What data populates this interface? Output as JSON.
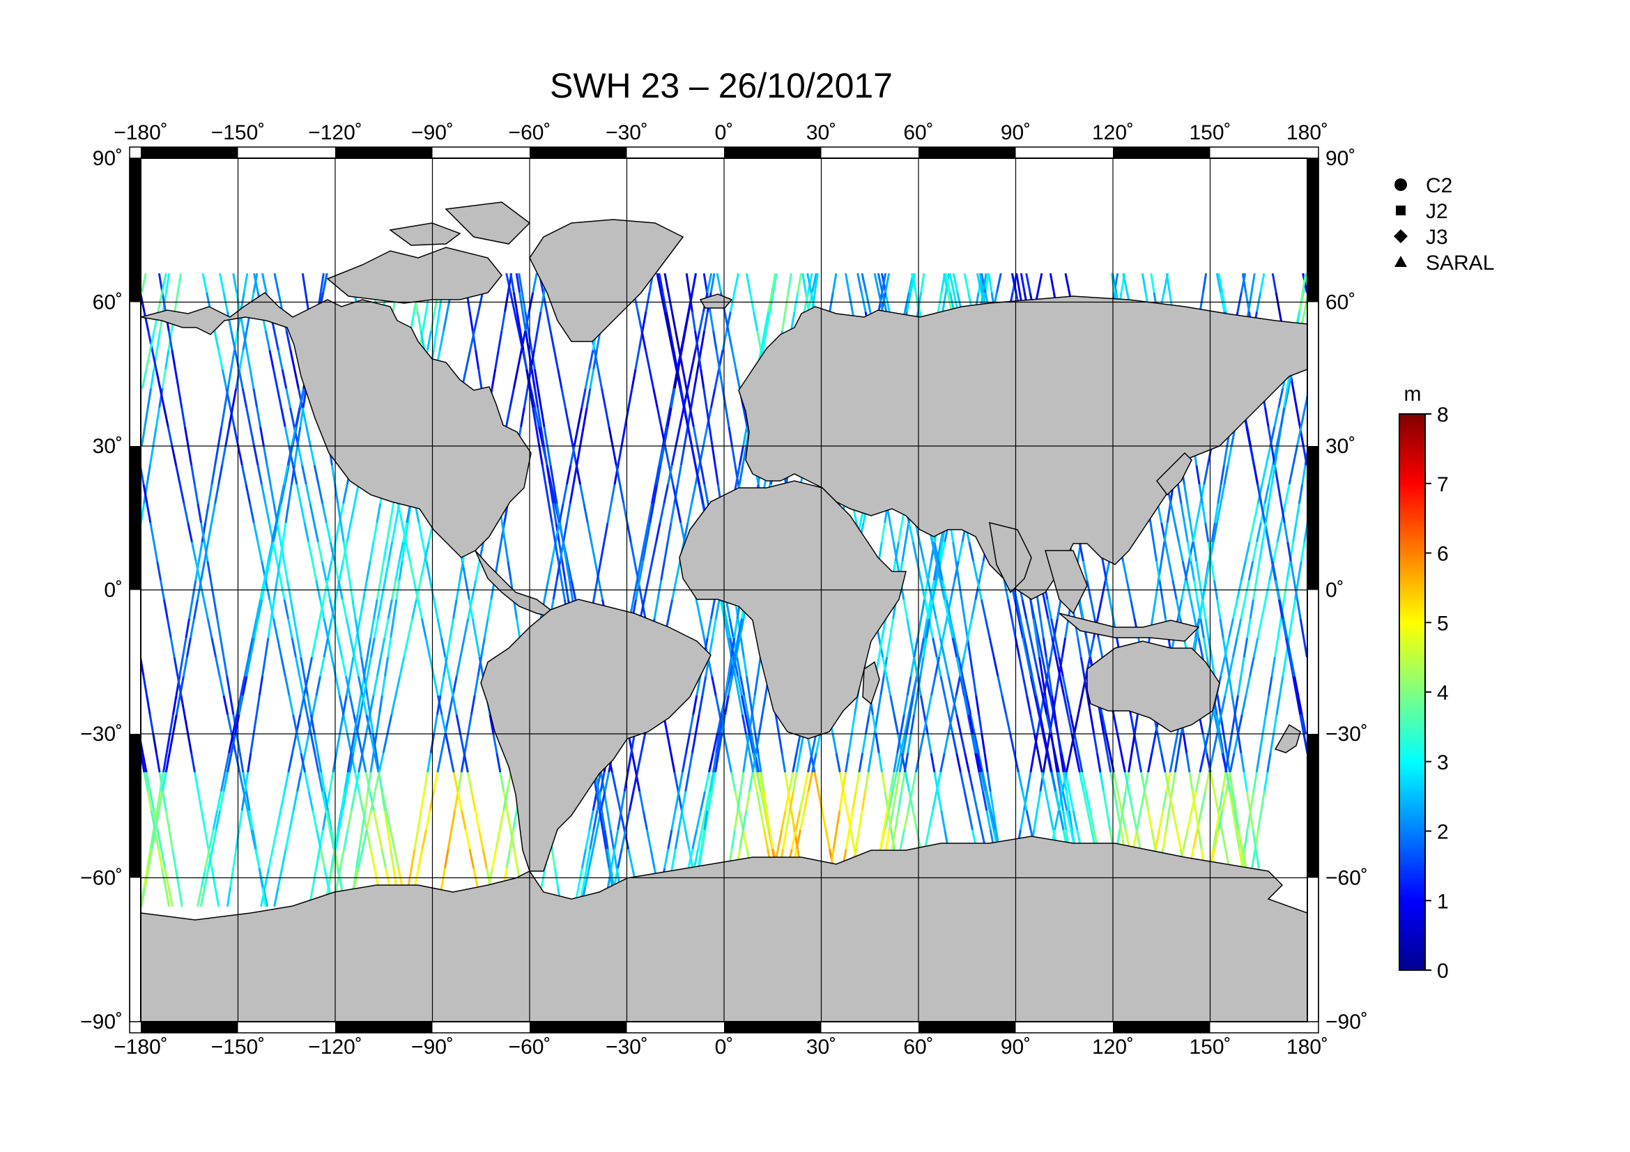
{
  "title": "SWH 23 – 26/10/2017",
  "map": {
    "projection": "equirectangular",
    "lon_range": [
      -180,
      180
    ],
    "lat_range": [
      -90,
      90
    ],
    "lon_ticks": [
      {
        "value": -180,
        "label": "−180˚"
      },
      {
        "value": -150,
        "label": "−150˚"
      },
      {
        "value": -120,
        "label": "−120˚"
      },
      {
        "value": -90,
        "label": "−90˚"
      },
      {
        "value": -60,
        "label": "−60˚"
      },
      {
        "value": -30,
        "label": "−30˚"
      },
      {
        "value": 0,
        "label": "0˚"
      },
      {
        "value": 30,
        "label": "30˚"
      },
      {
        "value": 60,
        "label": "60˚"
      },
      {
        "value": 90,
        "label": "90˚"
      },
      {
        "value": 120,
        "label": "120˚"
      },
      {
        "value": 150,
        "label": "150˚"
      },
      {
        "value": 180,
        "label": "180˚"
      }
    ],
    "lat_ticks": [
      {
        "value": 90,
        "label": "90˚"
      },
      {
        "value": 60,
        "label": "60˚"
      },
      {
        "value": 30,
        "label": "30˚"
      },
      {
        "value": 0,
        "label": "0˚"
      },
      {
        "value": -30,
        "label": "−30˚"
      },
      {
        "value": -60,
        "label": "−60˚"
      },
      {
        "value": -90,
        "label": "−90˚"
      }
    ],
    "land_color": "#bebebe",
    "ocean_color": "#ffffff",
    "grid": true
  },
  "legend": {
    "placement": "right",
    "items": [
      {
        "label": "C2",
        "marker": "circle"
      },
      {
        "label": "J2",
        "marker": "square"
      },
      {
        "label": "J3",
        "marker": "diamond"
      },
      {
        "label": "SARAL",
        "marker": "triangle"
      }
    ]
  },
  "colorbar": {
    "unit": "m",
    "min": 0,
    "max": 8,
    "ticks": [
      {
        "value": 0,
        "label": "0"
      },
      {
        "value": 1,
        "label": "1"
      },
      {
        "value": 2,
        "label": "2"
      },
      {
        "value": 3,
        "label": "3"
      },
      {
        "value": 4,
        "label": "4"
      },
      {
        "value": 5,
        "label": "5"
      },
      {
        "value": 6,
        "label": "6"
      },
      {
        "value": 7,
        "label": "7"
      },
      {
        "value": 8,
        "label": "8"
      }
    ],
    "colormap": [
      "#00008f",
      "#0000ff",
      "#0080ff",
      "#00ffff",
      "#80ff80",
      "#ffff00",
      "#ff8000",
      "#ff0000",
      "#800000"
    ]
  }
}
